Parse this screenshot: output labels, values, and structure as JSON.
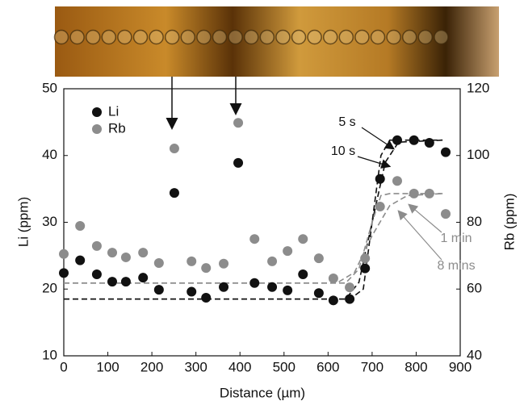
{
  "chart_data": {
    "type": "scatter",
    "x_label": "Distance (µm)",
    "y_label": "Li (ppm)",
    "y2_label": "Rb (ppm)",
    "xlim": [
      0,
      900
    ],
    "xticks": [
      0,
      100,
      200,
      300,
      400,
      500,
      600,
      700,
      800,
      900
    ],
    "ylim": [
      10,
      50
    ],
    "yticks": [
      10,
      20,
      30,
      40,
      50
    ],
    "y2lim": [
      40,
      120
    ],
    "y2ticks": [
      40,
      60,
      80,
      100,
      120
    ],
    "legend": "upper left",
    "x": [
      0,
      37,
      75,
      110,
      141,
      180,
      216,
      251,
      290,
      323,
      363,
      396,
      433,
      473,
      508,
      543,
      579,
      612,
      649,
      684,
      718,
      757,
      795,
      830,
      867
    ],
    "series": [
      {
        "name": "Li",
        "color": "#111111",
        "values": [
          22.4,
          24.3,
          22.2,
          21.1,
          21.1,
          21.7,
          19.9,
          34.4,
          19.6,
          18.7,
          20.3,
          38.9,
          20.9,
          20.3,
          19.8,
          22.2,
          19.4,
          18.3,
          18.5,
          23.1,
          36.5,
          42.3,
          42.3,
          41.9,
          40.5
        ]
      },
      {
        "name": "Rb",
        "color": "#8c8c8c",
        "axis": "y2",
        "values": [
          70.5,
          78.9,
          72.9,
          70.9,
          69.5,
          70.9,
          67.8,
          102.1,
          68.3,
          66.3,
          67.6,
          109.8,
          75.0,
          68.3,
          71.4,
          75.0,
          69.2,
          63.2,
          60.5,
          69.2,
          84.7,
          92.4,
          88.6,
          88.6,
          82.5
        ]
      }
    ],
    "curves": [
      {
        "label": "5 s",
        "color": "#111111",
        "x": [
          0,
          650,
          680,
          700,
          720,
          740,
          860
        ],
        "values": [
          18.5,
          18.5,
          20,
          30,
          40,
          42.3,
          42.3
        ]
      },
      {
        "label": "10 s",
        "color": "#111111",
        "x": [
          0,
          640,
          670,
          700,
          730,
          760,
          860
        ],
        "values": [
          18.5,
          18.5,
          21,
          30,
          39,
          42,
          42.3
        ]
      },
      {
        "label": "1 min",
        "color": "#8c8c8c",
        "axis": "y2",
        "x": [
          0,
          640,
          670,
          700,
          720,
          740,
          860
        ],
        "values": [
          61.8,
          61.8,
          66,
          80,
          88,
          88.6,
          88.6
        ]
      },
      {
        "label": "8 mins",
        "color": "#8c8c8c",
        "axis": "y2",
        "x": [
          0,
          620,
          660,
          700,
          740,
          780,
          860
        ],
        "values": [
          61.8,
          61.8,
          65,
          76,
          85,
          88,
          88.6
        ]
      }
    ]
  }
}
